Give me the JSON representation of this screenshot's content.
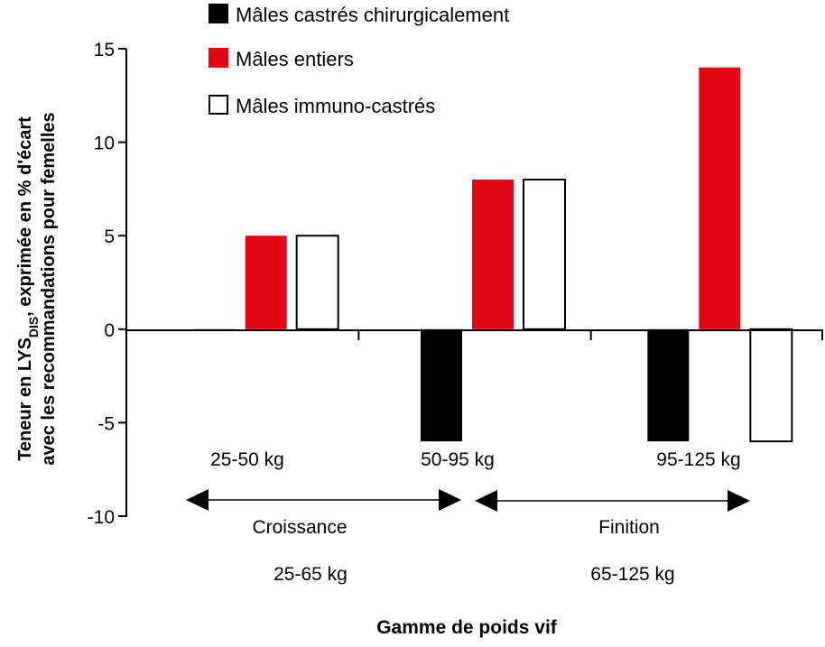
{
  "chart_data": {
    "type": "bar",
    "title": "",
    "categories": [
      "25-50 kg",
      "50-95 kg",
      "95-125 kg"
    ],
    "series": [
      {
        "name": "Mâles castrés chirurgicalement",
        "color": "#000000",
        "fill_style": "solid",
        "values": [
          0,
          -6,
          -6
        ]
      },
      {
        "name": "Mâles entiers",
        "color": "#e30613",
        "fill_style": "solid",
        "values": [
          5,
          8,
          14
        ]
      },
      {
        "name": "Mâles immuno-castrés",
        "color": "#ffffff",
        "fill_style": "outline",
        "values": [
          5,
          8,
          -6
        ]
      }
    ],
    "ylim": [
      -10,
      15
    ],
    "yticks": [
      "15",
      "10",
      "5",
      "0",
      "-5",
      "-10"
    ],
    "ytick_values": [
      15,
      10,
      5,
      0,
      -5,
      -10
    ],
    "ylabel_line1_prefix": "Teneur en LYS",
    "ylabel_line1_sub": "DIS",
    "ylabel_line1_suffix": ", exprimée en % d'écart",
    "ylabel_line2": "avec les recommandations pour femelles",
    "xlabel": "Gamme de poids vif",
    "legend_position": "top",
    "grid": false,
    "phases": [
      {
        "name": "Croissance",
        "range": "25-65 kg"
      },
      {
        "name": "Finition",
        "range": "65-125 kg"
      }
    ]
  }
}
